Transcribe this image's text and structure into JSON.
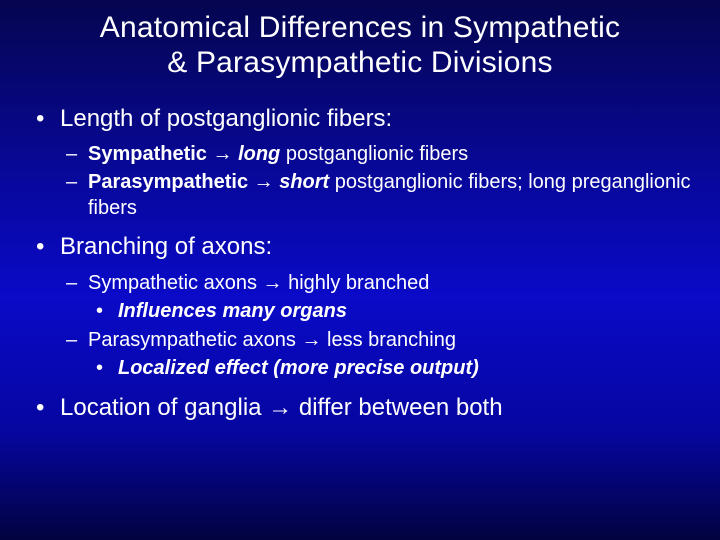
{
  "title_line1": "Anatomical Differences in Sympathetic",
  "title_line2": "& Parasympathetic Divisions",
  "arrow": "→",
  "bullets": {
    "b1": {
      "text": "Length of postganglionic fibers:",
      "sub": {
        "s1": {
          "label": "Sympathetic",
          "rest": "long postganglionic fibers"
        },
        "s2": {
          "label": "Parasympathetic",
          "rest1": "short",
          "rest2": "postganglionic fibers; long preganglionic fibers"
        }
      }
    },
    "b2": {
      "text": "Branching of axons:",
      "sub": {
        "s1": {
          "text": "Sympathetic axons",
          "rest": "highly branched",
          "note": "Influences many organs"
        },
        "s2": {
          "text": "Parasympathetic axons",
          "rest": "less branching",
          "note": "Localized effect (more precise output)"
        }
      }
    },
    "b3": {
      "text1": "Location of ganglia",
      "text2": "differ between both"
    }
  }
}
